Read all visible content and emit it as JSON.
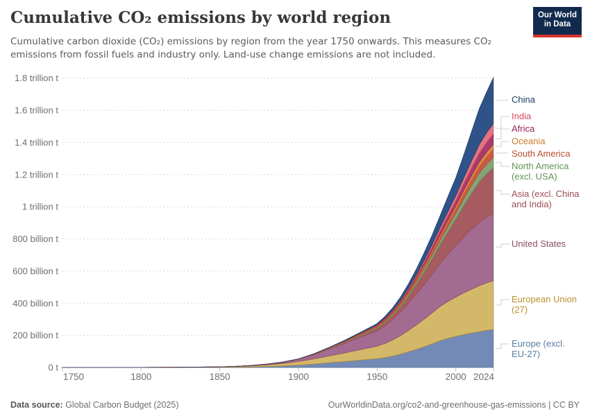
{
  "header": {
    "title": "Cumulative CO₂ emissions by world region",
    "subtitle": "Cumulative carbon dioxide (CO₂) emissions by region from the year 1750 onwards. This measures CO₂ emissions from fossil fuels and industry only. Land-use change emissions are not included.",
    "logo": {
      "line1": "Our World",
      "line2": "in Data"
    }
  },
  "footer": {
    "source_label": "Data source:",
    "source_value": " Global Carbon Budget (2025)",
    "link": "OurWorldinData.org/co2-and-greenhouse-gas-emissions | CC BY"
  },
  "chart_data": {
    "type": "area",
    "stacked": true,
    "title": "Cumulative CO₂ emissions by world region",
    "unit": "billion tonnes CO₂ (cumulative)",
    "grid": true,
    "legend_position": "right",
    "xlim": [
      1750,
      2024
    ],
    "ylim_billion_t": [
      0,
      1800
    ],
    "x_ticks": [
      1750,
      1800,
      1850,
      1900,
      1950,
      2000,
      2024
    ],
    "y_ticks": [
      {
        "value": 0,
        "label": "0 t"
      },
      {
        "value": 200,
        "label": "200 billion t"
      },
      {
        "value": 400,
        "label": "400 billion t"
      },
      {
        "value": 600,
        "label": "600 billion t"
      },
      {
        "value": 800,
        "label": "800 billion t"
      },
      {
        "value": 1000,
        "label": "1 trillion t"
      },
      {
        "value": 1200,
        "label": "1.2 trillion t"
      },
      {
        "value": 1400,
        "label": "1.4 trillion t"
      },
      {
        "value": 1600,
        "label": "1.6 trillion t"
      },
      {
        "value": 1800,
        "label": "1.8 trillion t"
      }
    ],
    "x": [
      1750,
      1775,
      1800,
      1825,
      1850,
      1860,
      1870,
      1880,
      1890,
      1900,
      1910,
      1920,
      1930,
      1940,
      1950,
      1955,
      1960,
      1965,
      1970,
      1975,
      1980,
      1985,
      1990,
      1995,
      2000,
      2005,
      2010,
      2015,
      2020,
      2024
    ],
    "legend_order": [
      "china",
      "india",
      "africa",
      "oceania",
      "samerica",
      "namerica_excl",
      "asia_excl",
      "us",
      "eu27",
      "europe_excl_eu27"
    ],
    "series": [
      {
        "id": "europe_excl_eu27",
        "name": "Europe (excl. EU-27)",
        "label_lines": [
          "Europe (excl.",
          "EU-27)"
        ],
        "fill": "#7389b6",
        "line": "#577da1",
        "label_color": "#577da1",
        "values": [
          0,
          0.05,
          0.15,
          0.5,
          1.5,
          2.5,
          4,
          6.5,
          10,
          15,
          22,
          30,
          38,
          47,
          55,
          62,
          72,
          84,
          98,
          113,
          130,
          148,
          167,
          182,
          194,
          205,
          215,
          224,
          232,
          237
        ]
      },
      {
        "id": "eu27",
        "name": "European Union (27)",
        "label_lines": [
          "European Union",
          "(27)"
        ],
        "fill": "#d4b869",
        "line": "#b8912f",
        "label_color": "#b8912f",
        "values": [
          0,
          0.05,
          0.2,
          0.6,
          2,
          3.5,
          6,
          10,
          15,
          22,
          32,
          43,
          54,
          66,
          78,
          88,
          100,
          115,
          133,
          152,
          172,
          192,
          212,
          229,
          244,
          259,
          272,
          285,
          296,
          303
        ]
      },
      {
        "id": "us",
        "name": "United States",
        "label_lines": [
          "United States"
        ],
        "fill": "#a36b92",
        "line": "#8b4a67",
        "label_color": "#8b4a67",
        "values": [
          0,
          0,
          0.01,
          0.05,
          0.3,
          0.8,
          1.8,
          3.5,
          7,
          13,
          25,
          42,
          60,
          78,
          95,
          110,
          127,
          147,
          170,
          193,
          217,
          241,
          266,
          292,
          318,
          347,
          373,
          394,
          409,
          418
        ]
      },
      {
        "id": "asia_excl",
        "name": "Asia (excl. China and India)",
        "label_lines": [
          "Asia (excl. China",
          "and India)"
        ],
        "fill": "#a65b60",
        "line": "#994d56",
        "label_color": "#994d56",
        "values": [
          0,
          0,
          0,
          0,
          0.05,
          0.1,
          0.2,
          0.4,
          0.7,
          1.2,
          2.5,
          4.5,
          7,
          11,
          16,
          20,
          26,
          34,
          45,
          60,
          78,
          97,
          118,
          142,
          167,
          195,
          225,
          253,
          272,
          285
        ]
      },
      {
        "id": "namerica_excl",
        "name": "North America (excl. USA)",
        "label_lines": [
          "North America",
          "(excl. USA)"
        ],
        "fill": "#86a377",
        "line": "#5f9453",
        "label_color": "#5f9453",
        "values": [
          0,
          0,
          0,
          0,
          0.02,
          0.05,
          0.1,
          0.2,
          0.3,
          0.5,
          1,
          2,
          3,
          4.5,
          6.5,
          7.7,
          9,
          11,
          13,
          16,
          19,
          23,
          27,
          31,
          36,
          42,
          48,
          54,
          60,
          65
        ]
      },
      {
        "id": "samerica",
        "name": "South America",
        "label_lines": [
          "South America"
        ],
        "fill": "#c75b44",
        "line": "#b94a2d",
        "label_color": "#b94a2d",
        "values": [
          0,
          0,
          0,
          0,
          0,
          0,
          0.05,
          0.1,
          0.2,
          0.3,
          0.6,
          1,
          1.7,
          2.5,
          4,
          5,
          6,
          7.5,
          9,
          11,
          14,
          17,
          20,
          24,
          28,
          33,
          38,
          44,
          48,
          52
        ]
      },
      {
        "id": "oceania",
        "name": "Oceania",
        "label_lines": [
          "Oceania"
        ],
        "fill": "#dd8c4a",
        "line": "#c77b29",
        "label_color": "#c77b29",
        "values": [
          0,
          0,
          0,
          0,
          0,
          0.02,
          0.05,
          0.1,
          0.2,
          0.4,
          0.7,
          1,
          1.6,
          2.2,
          3.2,
          3.8,
          4.5,
          5.5,
          6.5,
          8,
          9.5,
          11,
          13,
          15,
          17,
          19.5,
          22,
          25,
          28,
          30
        ]
      },
      {
        "id": "africa",
        "name": "Africa",
        "label_lines": [
          "Africa"
        ],
        "fill": "#a93c6d",
        "line": "#991f57",
        "label_color": "#991f57",
        "values": [
          0,
          0,
          0,
          0,
          0,
          0,
          0.02,
          0.05,
          0.1,
          0.2,
          0.4,
          0.8,
          1.3,
          2,
          3.5,
          4.4,
          5.5,
          7,
          9,
          11.5,
          15,
          19,
          24,
          28,
          33,
          40,
          47,
          55,
          61,
          65
        ]
      },
      {
        "id": "india",
        "name": "India",
        "label_lines": [
          "India"
        ],
        "fill": "#e27381",
        "line": "#d4495c",
        "label_color": "#d4495c",
        "values": [
          0,
          0,
          0,
          0,
          0.02,
          0.05,
          0.1,
          0.15,
          0.3,
          0.5,
          0.9,
          1.5,
          2.3,
          3.5,
          5,
          6,
          7,
          8.4,
          10,
          12,
          14.5,
          18,
          22,
          27,
          32,
          38,
          46,
          54,
          60,
          65
        ]
      },
      {
        "id": "china",
        "name": "China",
        "label_lines": [
          "China"
        ],
        "fill": "#2f5388",
        "line": "#1d3d63",
        "label_color": "#1d3d63",
        "values": [
          0,
          0,
          0,
          0,
          0.02,
          0.05,
          0.1,
          0.2,
          0.3,
          0.5,
          1,
          1.5,
          3,
          5,
          7,
          10,
          15,
          20,
          27,
          36,
          46,
          58,
          73,
          92,
          110,
          140,
          180,
          222,
          255,
          285
        ]
      }
    ]
  }
}
